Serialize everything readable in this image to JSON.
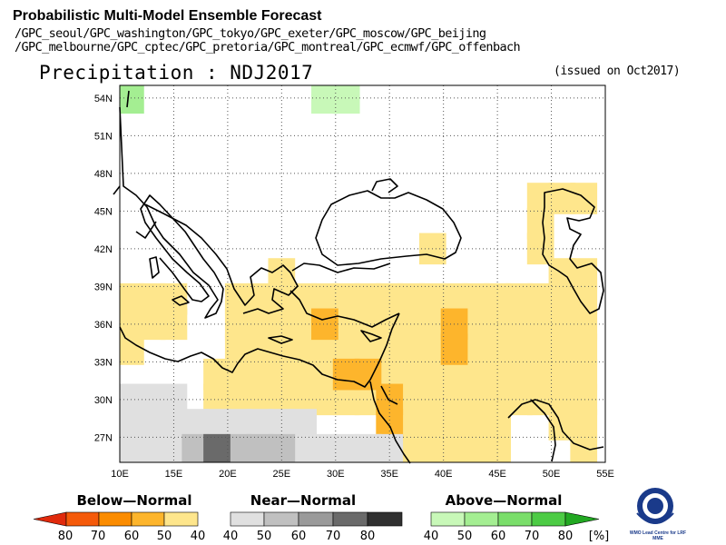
{
  "header": {
    "title": "Probabilistic Multi-Model Ensemble Forecast",
    "gpc_line1": "/GPC_seoul/GPC_washington/GPC_tokyo/GPC_exeter/GPC_moscow/GPC_beijing",
    "gpc_line2": "/GPC_melbourne/GPC_cptec/GPC_pretoria/GPC_montreal/GPC_ecmwf/GPC_offenbach",
    "variable": "Precipitation : NDJ2017",
    "issued": "(issued on Oct2017)"
  },
  "map": {
    "lon_range": [
      10,
      55
    ],
    "lat_range": [
      25,
      55
    ],
    "x_ticks": [
      "10E",
      "15E",
      "20E",
      "25E",
      "30E",
      "35E",
      "40E",
      "45E",
      "50E",
      "55E"
    ],
    "y_ticks": [
      "27N",
      "30N",
      "33N",
      "36N",
      "39N",
      "42N",
      "45N",
      "48N",
      "51N",
      "54N"
    ],
    "cell_size_deg": 2.5,
    "cells": [
      {
        "lon": 11,
        "lat": 54,
        "cat": "above",
        "val": 50
      },
      {
        "lon": 29,
        "lat": 54,
        "cat": "above",
        "val": 40
      },
      {
        "lon": 31,
        "lat": 54,
        "cat": "above",
        "val": 40
      },
      {
        "lon": 49,
        "lat": 46,
        "cat": "below",
        "val": 40
      },
      {
        "lon": 51,
        "lat": 46,
        "cat": "below",
        "val": 40
      },
      {
        "lon": 53,
        "lat": 46,
        "cat": "below",
        "val": 40
      },
      {
        "lon": 49,
        "lat": 44,
        "cat": "below",
        "val": 40
      },
      {
        "lon": 49,
        "lat": 42,
        "cat": "below",
        "val": 40
      },
      {
        "lon": 39,
        "lat": 42,
        "cat": "below",
        "val": 40
      },
      {
        "lon": 51,
        "lat": 40,
        "cat": "below",
        "val": 40
      },
      {
        "lon": 53,
        "lat": 40,
        "cat": "below",
        "val": 40
      },
      {
        "lon": 25,
        "lat": 40,
        "cat": "below",
        "val": 40
      },
      {
        "lon": 11,
        "lat": 38,
        "cat": "below",
        "val": 40
      },
      {
        "lon": 13,
        "lat": 38,
        "cat": "below",
        "val": 40
      },
      {
        "lon": 15,
        "lat": 38,
        "cat": "below",
        "val": 40
      },
      {
        "lon": 11,
        "lat": 36,
        "cat": "below",
        "val": 40
      },
      {
        "lon": 13,
        "lat": 36,
        "cat": "below",
        "val": 40
      },
      {
        "lon": 15,
        "lat": 36,
        "cat": "below",
        "val": 40
      },
      {
        "lon": 11,
        "lat": 34,
        "cat": "below",
        "val": 40
      },
      {
        "lon": 21,
        "lat": 38,
        "cat": "below",
        "val": 40
      },
      {
        "lon": 23,
        "lat": 38,
        "cat": "below",
        "val": 40
      },
      {
        "lon": 25,
        "lat": 38,
        "cat": "below",
        "val": 40
      },
      {
        "lon": 27,
        "lat": 38,
        "cat": "below",
        "val": 40
      },
      {
        "lon": 29,
        "lat": 38,
        "cat": "below",
        "val": 40
      },
      {
        "lon": 31,
        "lat": 38,
        "cat": "below",
        "val": 40
      },
      {
        "lon": 33,
        "lat": 38,
        "cat": "below",
        "val": 40
      },
      {
        "lon": 35,
        "lat": 38,
        "cat": "below",
        "val": 40
      },
      {
        "lon": 37,
        "lat": 38,
        "cat": "below",
        "val": 40
      },
      {
        "lon": 39,
        "lat": 38,
        "cat": "below",
        "val": 40
      },
      {
        "lon": 41,
        "lat": 38,
        "cat": "below",
        "val": 40
      },
      {
        "lon": 43,
        "lat": 38,
        "cat": "below",
        "val": 40
      },
      {
        "lon": 45,
        "lat": 38,
        "cat": "below",
        "val": 40
      },
      {
        "lon": 47,
        "lat": 38,
        "cat": "below",
        "val": 40
      },
      {
        "lon": 49,
        "lat": 38,
        "cat": "below",
        "val": 40
      },
      {
        "lon": 51,
        "lat": 38,
        "cat": "below",
        "val": 40
      },
      {
        "lon": 53,
        "lat": 38,
        "cat": "below",
        "val": 40
      },
      {
        "lon": 21,
        "lat": 36,
        "cat": "below",
        "val": 40
      },
      {
        "lon": 23,
        "lat": 36,
        "cat": "below",
        "val": 40
      },
      {
        "lon": 25,
        "lat": 36,
        "cat": "below",
        "val": 40
      },
      {
        "lon": 27,
        "lat": 36,
        "cat": "below",
        "val": 40
      },
      {
        "lon": 29,
        "lat": 36,
        "cat": "below",
        "val": 40
      },
      {
        "lon": 31,
        "lat": 36,
        "cat": "below",
        "val": 40
      },
      {
        "lon": 33,
        "lat": 36,
        "cat": "below",
        "val": 40
      },
      {
        "lon": 35,
        "lat": 36,
        "cat": "below",
        "val": 40
      },
      {
        "lon": 37,
        "lat": 36,
        "cat": "below",
        "val": 40
      },
      {
        "lon": 39,
        "lat": 36,
        "cat": "below",
        "val": 40
      },
      {
        "lon": 43,
        "lat": 36,
        "cat": "below",
        "val": 40
      },
      {
        "lon": 45,
        "lat": 36,
        "cat": "below",
        "val": 40
      },
      {
        "lon": 47,
        "lat": 36,
        "cat": "below",
        "val": 40
      },
      {
        "lon": 49,
        "lat": 36,
        "cat": "below",
        "val": 40
      },
      {
        "lon": 51,
        "lat": 36,
        "cat": "below",
        "val": 40
      },
      {
        "lon": 53,
        "lat": 36,
        "cat": "below",
        "val": 40
      },
      {
        "lon": 21,
        "lat": 34,
        "cat": "below",
        "val": 40
      },
      {
        "lon": 23,
        "lat": 34,
        "cat": "below",
        "val": 40
      },
      {
        "lon": 25,
        "lat": 34,
        "cat": "below",
        "val": 40
      },
      {
        "lon": 27,
        "lat": 34,
        "cat": "below",
        "val": 40
      },
      {
        "lon": 29,
        "lat": 34,
        "cat": "below",
        "val": 40
      },
      {
        "lon": 31,
        "lat": 34,
        "cat": "below",
        "val": 40
      },
      {
        "lon": 33,
        "lat": 34,
        "cat": "below",
        "val": 40
      },
      {
        "lon": 35,
        "lat": 34,
        "cat": "below",
        "val": 40
      },
      {
        "lon": 37,
        "lat": 34,
        "cat": "below",
        "val": 40
      },
      {
        "lon": 39,
        "lat": 34,
        "cat": "below",
        "val": 40
      },
      {
        "lon": 43,
        "lat": 34,
        "cat": "below",
        "val": 40
      },
      {
        "lon": 45,
        "lat": 34,
        "cat": "below",
        "val": 40
      },
      {
        "lon": 47,
        "lat": 34,
        "cat": "below",
        "val": 40
      },
      {
        "lon": 49,
        "lat": 34,
        "cat": "below",
        "val": 40
      },
      {
        "lon": 51,
        "lat": 34,
        "cat": "below",
        "val": 40
      },
      {
        "lon": 53,
        "lat": 34,
        "cat": "below",
        "val": 40
      },
      {
        "lon": 19,
        "lat": 32,
        "cat": "below",
        "val": 40
      },
      {
        "lon": 21,
        "lat": 32,
        "cat": "below",
        "val": 40
      },
      {
        "lon": 23,
        "lat": 32,
        "cat": "below",
        "val": 40
      },
      {
        "lon": 25,
        "lat": 32,
        "cat": "below",
        "val": 40
      },
      {
        "lon": 27,
        "lat": 32,
        "cat": "below",
        "val": 40
      },
      {
        "lon": 29,
        "lat": 32,
        "cat": "below",
        "val": 40
      },
      {
        "lon": 35,
        "lat": 32,
        "cat": "below",
        "val": 40
      },
      {
        "lon": 37,
        "lat": 32,
        "cat": "below",
        "val": 40
      },
      {
        "lon": 39,
        "lat": 32,
        "cat": "below",
        "val": 40
      },
      {
        "lon": 41,
        "lat": 32,
        "cat": "below",
        "val": 40
      },
      {
        "lon": 43,
        "lat": 32,
        "cat": "below",
        "val": 40
      },
      {
        "lon": 45,
        "lat": 32,
        "cat": "below",
        "val": 40
      },
      {
        "lon": 47,
        "lat": 32,
        "cat": "below",
        "val": 40
      },
      {
        "lon": 49,
        "lat": 32,
        "cat": "below",
        "val": 40
      },
      {
        "lon": 51,
        "lat": 32,
        "cat": "below",
        "val": 40
      },
      {
        "lon": 53,
        "lat": 32,
        "cat": "below",
        "val": 40
      },
      {
        "lon": 19,
        "lat": 30,
        "cat": "below",
        "val": 40
      },
      {
        "lon": 21,
        "lat": 30,
        "cat": "below",
        "val": 40
      },
      {
        "lon": 23,
        "lat": 30,
        "cat": "below",
        "val": 40
      },
      {
        "lon": 25,
        "lat": 30,
        "cat": "below",
        "val": 40
      },
      {
        "lon": 27,
        "lat": 30,
        "cat": "below",
        "val": 40
      },
      {
        "lon": 29,
        "lat": 30,
        "cat": "below",
        "val": 40
      },
      {
        "lon": 31,
        "lat": 30,
        "cat": "below",
        "val": 40
      },
      {
        "lon": 33,
        "lat": 30,
        "cat": "below",
        "val": 40
      },
      {
        "lon": 37,
        "lat": 30,
        "cat": "below",
        "val": 40
      },
      {
        "lon": 39,
        "lat": 30,
        "cat": "below",
        "val": 40
      },
      {
        "lon": 41,
        "lat": 30,
        "cat": "below",
        "val": 40
      },
      {
        "lon": 43,
        "lat": 30,
        "cat": "below",
        "val": 40
      },
      {
        "lon": 45,
        "lat": 30,
        "cat": "below",
        "val": 40
      },
      {
        "lon": 47,
        "lat": 30,
        "cat": "below",
        "val": 40
      },
      {
        "lon": 49,
        "lat": 30,
        "cat": "below",
        "val": 40
      },
      {
        "lon": 51,
        "lat": 30,
        "cat": "below",
        "val": 40
      },
      {
        "lon": 53,
        "lat": 30,
        "cat": "below",
        "val": 40
      },
      {
        "lon": 35,
        "lat": 28,
        "cat": "below",
        "val": 40
      },
      {
        "lon": 37,
        "lat": 28,
        "cat": "below",
        "val": 40
      },
      {
        "lon": 39,
        "lat": 28,
        "cat": "below",
        "val": 40
      },
      {
        "lon": 41,
        "lat": 28,
        "cat": "below",
        "val": 40
      },
      {
        "lon": 43,
        "lat": 28,
        "cat": "below",
        "val": 40
      },
      {
        "lon": 45,
        "lat": 28,
        "cat": "below",
        "val": 40
      },
      {
        "lon": 51,
        "lat": 28,
        "cat": "below",
        "val": 40
      },
      {
        "lon": 53,
        "lat": 28,
        "cat": "below",
        "val": 40
      },
      {
        "lon": 37,
        "lat": 26,
        "cat": "below",
        "val": 40
      },
      {
        "lon": 39,
        "lat": 26,
        "cat": "below",
        "val": 40
      },
      {
        "lon": 41,
        "lat": 26,
        "cat": "below",
        "val": 40
      },
      {
        "lon": 43,
        "lat": 26,
        "cat": "below",
        "val": 40
      },
      {
        "lon": 45,
        "lat": 26,
        "cat": "below",
        "val": 40
      },
      {
        "lon": 53,
        "lat": 26,
        "cat": "below",
        "val": 40
      },
      {
        "lon": 29,
        "lat": 36,
        "cat": "below",
        "val": 50
      },
      {
        "lon": 41,
        "lat": 36,
        "cat": "below",
        "val": 50
      },
      {
        "lon": 41,
        "lat": 34,
        "cat": "below",
        "val": 50
      },
      {
        "lon": 31,
        "lat": 32,
        "cat": "below",
        "val": 50
      },
      {
        "lon": 33,
        "lat": 32,
        "cat": "below",
        "val": 50
      },
      {
        "lon": 35,
        "lat": 30,
        "cat": "below",
        "val": 50
      },
      {
        "lon": 35,
        "lat": 28,
        "cat": "below",
        "val": 50
      },
      {
        "lon": 11,
        "lat": 30,
        "cat": "near",
        "val": 40
      },
      {
        "lon": 13,
        "lat": 30,
        "cat": "near",
        "val": 40
      },
      {
        "lon": 15,
        "lat": 30,
        "cat": "near",
        "val": 40
      },
      {
        "lon": 11,
        "lat": 28,
        "cat": "near",
        "val": 40
      },
      {
        "lon": 13,
        "lat": 28,
        "cat": "near",
        "val": 40
      },
      {
        "lon": 15,
        "lat": 28,
        "cat": "near",
        "val": 40
      },
      {
        "lon": 17,
        "lat": 28,
        "cat": "near",
        "val": 40
      },
      {
        "lon": 19,
        "lat": 28,
        "cat": "near",
        "val": 40
      },
      {
        "lon": 21,
        "lat": 28,
        "cat": "near",
        "val": 40
      },
      {
        "lon": 23,
        "lat": 28,
        "cat": "near",
        "val": 40
      },
      {
        "lon": 25,
        "lat": 28,
        "cat": "near",
        "val": 40
      },
      {
        "lon": 27,
        "lat": 28,
        "cat": "near",
        "val": 40
      },
      {
        "lon": 11,
        "lat": 26,
        "cat": "near",
        "val": 40
      },
      {
        "lon": 13,
        "lat": 26,
        "cat": "near",
        "val": 40
      },
      {
        "lon": 15,
        "lat": 26,
        "cat": "near",
        "val": 40
      },
      {
        "lon": 27,
        "lat": 26,
        "cat": "near",
        "val": 40
      },
      {
        "lon": 29,
        "lat": 26,
        "cat": "near",
        "val": 40
      },
      {
        "lon": 31,
        "lat": 26,
        "cat": "near",
        "val": 40
      },
      {
        "lon": 33,
        "lat": 26,
        "cat": "near",
        "val": 40
      },
      {
        "lon": 35,
        "lat": 26,
        "cat": "near",
        "val": 40
      },
      {
        "lon": 17,
        "lat": 26,
        "cat": "near",
        "val": 50
      },
      {
        "lon": 21,
        "lat": 26,
        "cat": "near",
        "val": 50
      },
      {
        "lon": 23,
        "lat": 26,
        "cat": "near",
        "val": 50
      },
      {
        "lon": 25,
        "lat": 26,
        "cat": "near",
        "val": 50
      },
      {
        "lon": 19,
        "lat": 26,
        "cat": "near",
        "val": 70
      }
    ]
  },
  "legend": {
    "below_title": "Below—Normal",
    "near_title": "Near—Normal",
    "above_title": "Above—Normal",
    "below_labels": [
      "80",
      "70",
      "60",
      "50",
      "40"
    ],
    "near_labels": [
      "40",
      "50",
      "60",
      "70",
      "80"
    ],
    "above_labels": [
      "40",
      "50",
      "60",
      "70",
      "80"
    ],
    "unit": "[%]",
    "below_colors": [
      "#e02a0c",
      "#f55a0a",
      "#fb8c00",
      "#fdb52c",
      "#fee68c"
    ],
    "near_colors": [
      "#e0e0e0",
      "#c0c0c0",
      "#9a9a9a",
      "#6a6a6a",
      "#303030"
    ],
    "above_colors": [
      "#c8f8b8",
      "#a4ee92",
      "#7ade6a",
      "#4ccb44",
      "#22a822"
    ]
  },
  "logo": {
    "caption": "WMO Lead Centre for LRF MME"
  }
}
